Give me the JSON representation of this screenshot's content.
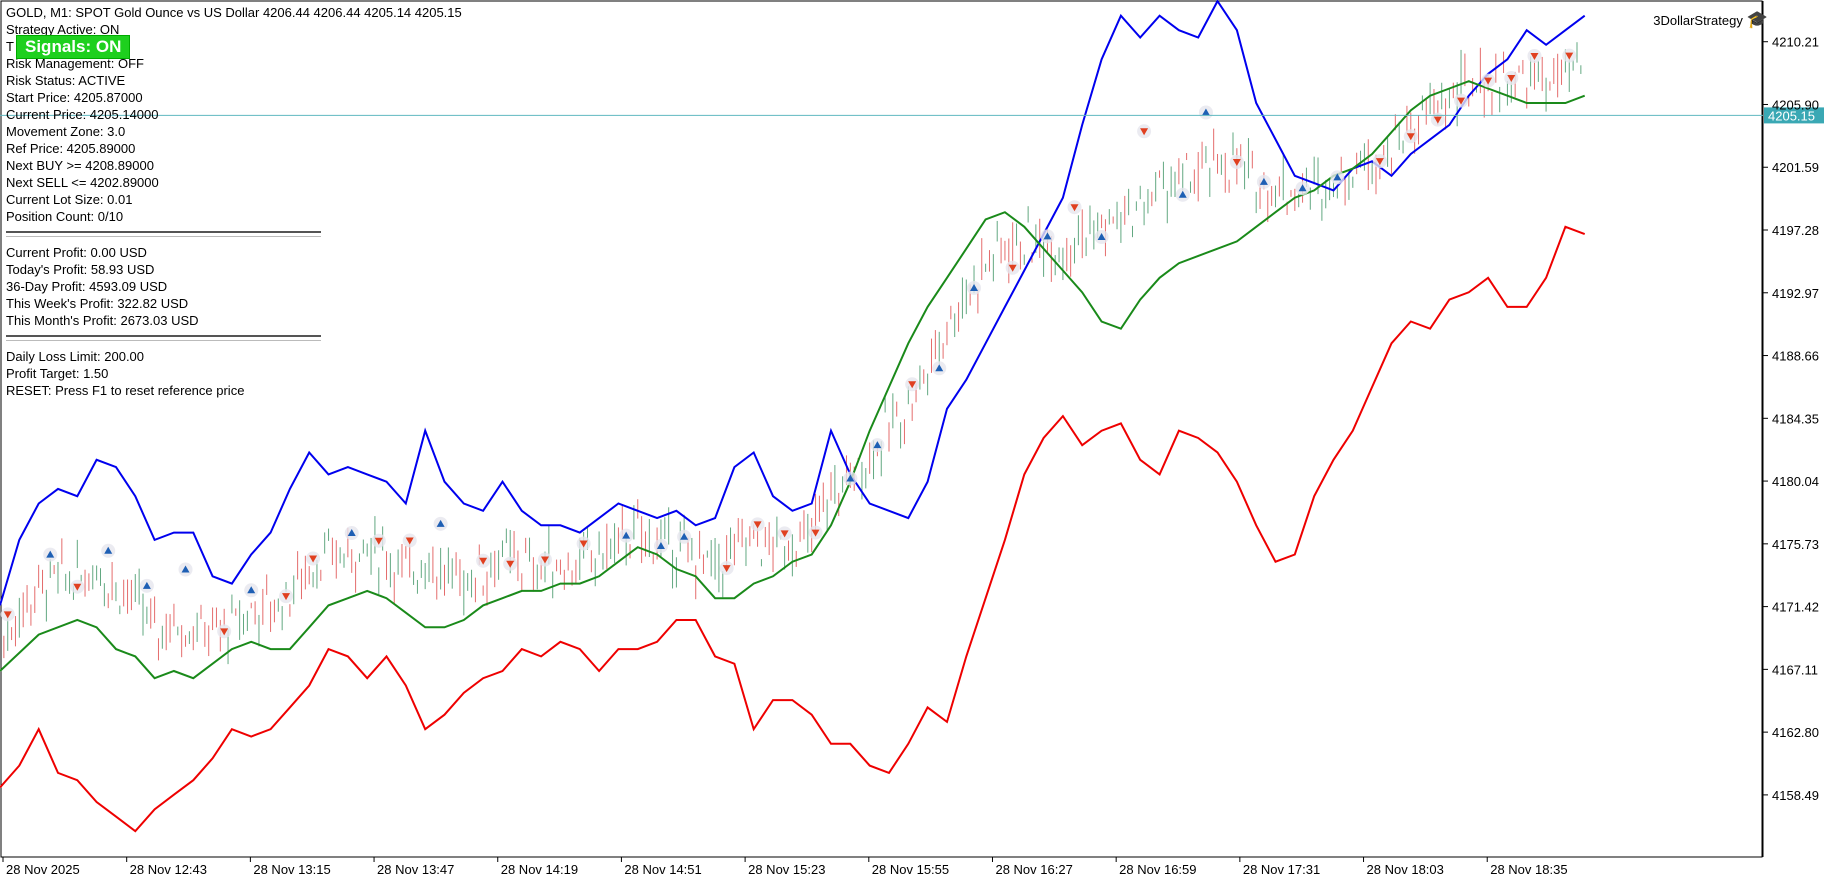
{
  "window": {
    "symbol_line": "GOLD, M1:  SPOT Gold Ounce vs US Dollar  4206.44 4206.44 4205.14 4205.15",
    "brand": "3DollarStrategy"
  },
  "badge": {
    "label": "Signals: ON"
  },
  "info_lines_1": [
    "Strategy Active: ON",
    "T",
    "Risk Management: OFF",
    "Risk Status: ACTIVE",
    "Start Price: 4205.87000",
    "Current Price: 4205.14000",
    "Movement Zone: 3.0",
    "Ref Price: 4205.89000",
    "Next BUY >= 4208.89000",
    "Next SELL <= 4202.89000",
    "Current Lot Size: 0.01",
    "Position Count: 0/10"
  ],
  "info_lines_2": [
    "Current Profit: 0.00 USD",
    "Today's Profit: 58.93 USD",
    "36-Day Profit: 4593.09 USD",
    "This Week's Profit: 322.82 USD",
    "This Month's Profit: 2673.03 USD"
  ],
  "info_lines_3": [
    "Daily Loss Limit: 200.00",
    "Profit Target: 1.50",
    "RESET: Press F1 to reset reference price"
  ],
  "colors": {
    "upper_band": "#0000ee",
    "lower_band": "#ee0000",
    "middle": "#1a8a1a",
    "price_line": "#5fb8c0",
    "price_label_bg": "#3aa8b4",
    "candle_up": "#2e8b57",
    "candle_down": "#dc3c3c",
    "buy_arrow": "#1e5fb4",
    "sell_arrow": "#e04020",
    "signal_buy": "#22ee22",
    "signal_sell": "#ee1111"
  },
  "chart_data": {
    "type": "line",
    "title": "",
    "ylim": [
      4154.5,
      4212.8
    ],
    "y_ticks": [
      4210.21,
      4205.9,
      4201.59,
      4197.28,
      4192.97,
      4188.66,
      4184.35,
      4180.04,
      4175.73,
      4171.42,
      4167.11,
      4162.8,
      4158.49
    ],
    "y_tick_labels": [
      "4210.21",
      "4205.90",
      "4201.59",
      "4197.28",
      "4192.97",
      "4188.66",
      "4184.35",
      "4180.04",
      "4175.73",
      "4171.42",
      "4167.11",
      "4162.80",
      "4158.49"
    ],
    "x_range": [
      0,
      445
    ],
    "x_ticks": [
      0,
      32,
      64,
      96,
      128,
      160,
      192,
      224,
      256,
      288,
      320,
      352,
      384
    ],
    "x_tick_labels": [
      "28 Nov 2025",
      "28 Nov 12:43",
      "28 Nov 13:15",
      "28 Nov 13:47",
      "28 Nov 14:19",
      "28 Nov 14:51",
      "28 Nov 15:23",
      "28 Nov 15:55",
      "28 Nov 16:27",
      "28 Nov 16:59",
      "28 Nov 17:31",
      "28 Nov 18:03",
      "28 Nov 18:35"
    ],
    "current_price": 4205.15,
    "current_price_label": "4205.15",
    "series": [
      {
        "x": [
          0,
          5,
          10,
          15,
          20,
          25,
          30,
          35,
          40,
          45,
          50,
          55,
          60,
          65,
          70,
          75,
          80,
          85,
          90,
          95,
          100,
          105,
          110,
          115,
          120,
          125,
          130,
          135,
          140,
          145,
          150,
          155,
          160,
          165,
          170,
          175,
          180,
          185,
          190,
          195,
          200,
          205,
          210,
          215,
          220,
          225,
          230,
          235,
          240,
          245,
          250,
          255,
          260,
          265,
          270,
          275,
          280,
          285,
          290,
          295,
          300,
          305,
          310,
          315,
          320,
          325,
          330,
          335,
          340,
          345,
          350,
          355,
          360,
          365,
          370,
          375,
          380,
          385,
          390,
          395,
          400,
          405,
          410
        ],
        "values": [
          4171.5,
          4176,
          4178.5,
          4179.5,
          4179,
          4181.5,
          4181,
          4179,
          4176,
          4176.5,
          4176.5,
          4173.5,
          4173,
          4175,
          4176.5,
          4179.5,
          4182,
          4180.5,
          4181,
          4180.5,
          4180,
          4178.5,
          4183.5,
          4180,
          4178.5,
          4178,
          4180,
          4178,
          4177,
          4177,
          4176.5,
          4177.5,
          4178.5,
          4178,
          4177.5,
          4178,
          4177,
          4177.5,
          4181,
          4182,
          4179,
          4178,
          4178.5,
          4183.5,
          4180.5,
          4178.5,
          4178,
          4177.5,
          4180,
          4185,
          4187,
          4189.5,
          4192,
          4194.5,
          4197,
          4199.5,
          4204.5,
          4209,
          4212,
          4210.5,
          4212,
          4211,
          4210.5,
          4213,
          4211,
          4206,
          4203.5,
          4201,
          4200.5,
          4200,
          4201.5,
          4202,
          4201,
          4202.5,
          4203.5,
          4204.5,
          4206.5,
          4208,
          4209,
          4211,
          4210,
          4211,
          4212
        ]
      },
      {
        "x": [
          0,
          10,
          20,
          25,
          30,
          35,
          40,
          45,
          50,
          55,
          60,
          65,
          70,
          75,
          80,
          85,
          90,
          95,
          100,
          105,
          110,
          115,
          120,
          125,
          130,
          135,
          140,
          145,
          150,
          155,
          160,
          165,
          170,
          175,
          180,
          185,
          190,
          195,
          200,
          205,
          210,
          215,
          220,
          225,
          230,
          235,
          240,
          245,
          250,
          255,
          260,
          265,
          270,
          275,
          280,
          285,
          290,
          295,
          300,
          305,
          310,
          315,
          320,
          325,
          330,
          335,
          340,
          345,
          350,
          355,
          360,
          365,
          370,
          375,
          380,
          385,
          390,
          395,
          400,
          405,
          410
        ],
        "values": [
          4167,
          4169.5,
          4170.5,
          4170,
          4168.5,
          4168,
          4166.5,
          4167,
          4166.5,
          4167.5,
          4168.5,
          4169,
          4168.5,
          4168.5,
          4170,
          4171.5,
          4172,
          4172.5,
          4172,
          4171,
          4170,
          4170,
          4170.5,
          4171.5,
          4172,
          4172.5,
          4172.5,
          4173,
          4173,
          4173.5,
          4174.5,
          4175.5,
          4175,
          4174,
          4173.5,
          4172,
          4172,
          4173,
          4173.5,
          4174.5,
          4175,
          4177,
          4180,
          4183.5,
          4186.5,
          4189.5,
          4192,
          4194,
          4196,
          4198,
          4198.5,
          4197.5,
          4196,
          4194.5,
          4193,
          4191,
          4190.5,
          4192.5,
          4194,
          4195,
          4195.5,
          4196,
          4196.5,
          4197.5,
          4198.5,
          4199.5,
          4200,
          4201,
          4201.5,
          4202.5,
          4204,
          4205.5,
          4206.5,
          4207,
          4207.5,
          4207,
          4206.5,
          4206,
          4206,
          4206,
          4206.5
        ]
      },
      {
        "x": [
          0,
          5,
          10,
          15,
          20,
          25,
          30,
          35,
          40,
          45,
          50,
          55,
          60,
          65,
          70,
          75,
          80,
          85,
          90,
          95,
          100,
          105,
          110,
          115,
          120,
          125,
          130,
          135,
          140,
          145,
          150,
          155,
          160,
          165,
          170,
          175,
          180,
          185,
          190,
          195,
          200,
          205,
          210,
          215,
          220,
          225,
          230,
          235,
          240,
          245,
          250,
          255,
          260,
          265,
          270,
          275,
          280,
          285,
          290,
          295,
          300,
          305,
          310,
          315,
          320,
          325,
          330,
          335,
          340,
          345,
          350,
          355,
          360,
          365,
          370,
          375,
          380,
          385,
          390,
          395,
          400,
          405,
          410
        ],
        "values": [
          4159,
          4160.5,
          4163,
          4160,
          4159.5,
          4158,
          4157,
          4156,
          4157.5,
          4158.5,
          4159.5,
          4161,
          4163,
          4162.5,
          4163,
          4164.5,
          4166,
          4168.5,
          4168,
          4166.5,
          4168,
          4166,
          4163,
          4164,
          4165.5,
          4166.5,
          4167,
          4168.5,
          4168,
          4169,
          4168.5,
          4167,
          4168.5,
          4168.5,
          4169,
          4170.5,
          4170.5,
          4168,
          4167.5,
          4163,
          4165,
          4165,
          4164,
          4162,
          4162,
          4160.5,
          4160,
          4162,
          4164.5,
          4163.5,
          4168,
          4172,
          4176,
          4180.5,
          4183,
          4184.5,
          4182.5,
          4183.5,
          4184,
          4181.5,
          4180.5,
          4183.5,
          4183,
          4182,
          4180,
          4177,
          4174.5,
          4175,
          4179,
          4181.5,
          4183.5,
          4186.5,
          4189.5,
          4191,
          4190.5,
          4192.5,
          4193,
          4194,
          4192,
          4192,
          4194,
          4197.5,
          4197
        ]
      }
    ],
    "series_meta": [
      {
        "role": "upper band"
      },
      {
        "role": "middle line"
      },
      {
        "role": "lower band"
      }
    ]
  }
}
